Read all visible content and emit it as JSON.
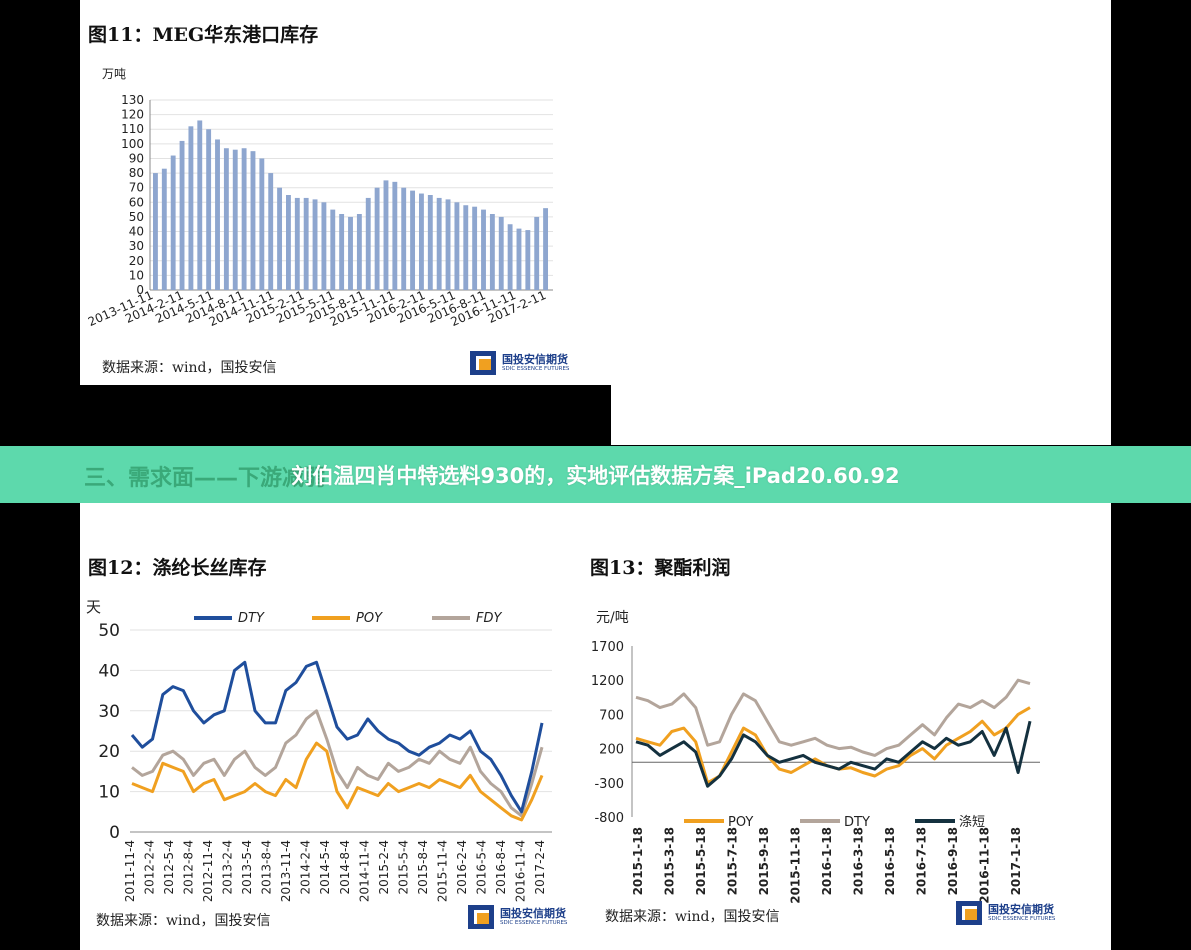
{
  "banner": {
    "section_heading": "三、需求面——下游减弱",
    "headline": "刘伯温四肖中特选料930的，实地评估数据方案_iPad20.60.92"
  },
  "source_label": "数据来源：wind，国投安信",
  "logo": {
    "cn": "国投安信期货",
    "en": "SDIC ESSENCE FUTURES",
    "brand_color": "#1d3f8a"
  },
  "chart_data": [
    {
      "id": "fig11",
      "type": "bar",
      "title": "图11：MEG华东港口库存",
      "ylabel": "万吨",
      "ylim": [
        0,
        130
      ],
      "yticks": [
        0,
        10,
        20,
        30,
        40,
        50,
        60,
        70,
        80,
        90,
        100,
        110,
        120,
        130
      ],
      "x_ticks": [
        "2013-11-11",
        "2014-2-11",
        "2014-5-11",
        "2014-8-11",
        "2014-11-11",
        "2015-2-11",
        "2015-5-11",
        "2015-8-11",
        "2015-11-11",
        "2016-2-11",
        "2016-5-11",
        "2016-8-11",
        "2016-11-11",
        "2017-2-11"
      ],
      "color": "#8ea6cf",
      "grid": true,
      "values": [
        80,
        83,
        92,
        102,
        112,
        116,
        110,
        103,
        97,
        96,
        97,
        95,
        90,
        80,
        70,
        65,
        63,
        63,
        62,
        60,
        55,
        52,
        50,
        52,
        63,
        70,
        75,
        74,
        70,
        68,
        66,
        65,
        63,
        62,
        60,
        58,
        57,
        55,
        52,
        50,
        45,
        42,
        41,
        50,
        56
      ]
    },
    {
      "id": "fig12",
      "type": "line",
      "title": "图12：涤纶长丝库存",
      "ylabel": "天",
      "ylim": [
        0,
        50
      ],
      "yticks": [
        0,
        10,
        20,
        30,
        40,
        50
      ],
      "x_ticks": [
        "2011-11-4",
        "2012-2-4",
        "2012-5-4",
        "2012-8-4",
        "2012-11-4",
        "2013-2-4",
        "2013-5-4",
        "2013-8-4",
        "2013-11-4",
        "2014-2-4",
        "2014-5-4",
        "2014-8-4",
        "2014-11-4",
        "2015-2-4",
        "2015-5-4",
        "2015-8-4",
        "2015-11-4",
        "2016-2-4",
        "2016-5-4",
        "2016-8-4",
        "2016-11-4",
        "2017-2-4"
      ],
      "grid": true,
      "legend_position": "top",
      "series": [
        {
          "name": "DTY",
          "color": "#1f4e9c",
          "values": [
            24,
            21,
            23,
            34,
            36,
            35,
            30,
            27,
            29,
            30,
            40,
            42,
            30,
            27,
            27,
            35,
            37,
            41,
            42,
            34,
            26,
            23,
            24,
            28,
            25,
            23,
            22,
            20,
            19,
            21,
            22,
            24,
            23,
            25,
            20,
            18,
            14,
            9,
            5,
            15,
            27
          ]
        },
        {
          "name": "POY",
          "color": "#f0a020",
          "values": [
            12,
            11,
            10,
            17,
            16,
            15,
            10,
            12,
            13,
            8,
            9,
            10,
            12,
            10,
            9,
            13,
            11,
            18,
            22,
            20,
            10,
            6,
            11,
            10,
            9,
            12,
            10,
            11,
            12,
            11,
            13,
            12,
            11,
            14,
            10,
            8,
            6,
            4,
            3,
            8,
            14
          ]
        },
        {
          "name": "FDY",
          "color": "#b3a59b",
          "values": [
            16,
            14,
            15,
            19,
            20,
            18,
            14,
            17,
            18,
            14,
            18,
            20,
            16,
            14,
            16,
            22,
            24,
            28,
            30,
            23,
            15,
            11,
            16,
            14,
            13,
            17,
            15,
            16,
            18,
            17,
            20,
            18,
            17,
            21,
            15,
            12,
            10,
            6,
            4,
            12,
            21
          ]
        }
      ]
    },
    {
      "id": "fig13",
      "type": "line",
      "title": "图13：聚酯利润",
      "ylabel": "元/吨",
      "ylim": [
        -800,
        1700
      ],
      "yticks": [
        -800,
        -300,
        200,
        700,
        1200,
        1700
      ],
      "x_ticks": [
        "2015-1-18",
        "2015-3-18",
        "2015-5-18",
        "2015-7-18",
        "2015-9-18",
        "2015-11-18",
        "2016-1-18",
        "2016-3-18",
        "2016-5-18",
        "2016-7-18",
        "2016-9-18",
        "2016-11-18",
        "2017-1-18"
      ],
      "zero_line": true,
      "grid": false,
      "legend_position": "bottom",
      "series": [
        {
          "name": "POY",
          "color": "#f0a020",
          "values": [
            350,
            300,
            250,
            450,
            500,
            300,
            -300,
            -200,
            150,
            500,
            400,
            100,
            -100,
            -150,
            -50,
            50,
            -50,
            -100,
            -80,
            -150,
            -200,
            -100,
            -50,
            100,
            200,
            50,
            250,
            350,
            450,
            600,
            400,
            500,
            700,
            800
          ]
        },
        {
          "name": "DTY",
          "color": "#b3a59b",
          "values": [
            950,
            900,
            800,
            850,
            1000,
            800,
            250,
            300,
            700,
            1000,
            900,
            600,
            300,
            250,
            300,
            350,
            250,
            200,
            220,
            150,
            100,
            200,
            250,
            400,
            550,
            400,
            650,
            850,
            800,
            900,
            800,
            950,
            1200,
            1150
          ]
        },
        {
          "name": "涤短",
          "color": "#14313f",
          "values": [
            300,
            250,
            100,
            200,
            300,
            150,
            -350,
            -200,
            50,
            400,
            300,
            100,
            0,
            50,
            100,
            0,
            -50,
            -100,
            0,
            -50,
            -100,
            50,
            0,
            150,
            300,
            200,
            350,
            250,
            300,
            450,
            100,
            500,
            -150,
            600
          ]
        }
      ]
    }
  ]
}
